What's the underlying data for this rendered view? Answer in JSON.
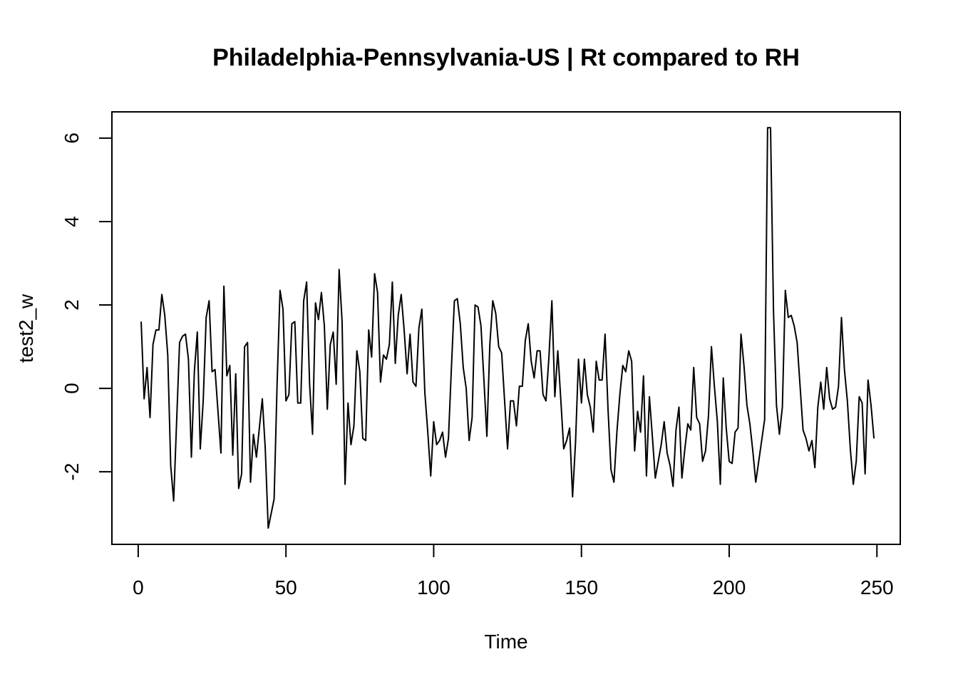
{
  "chart_data": {
    "type": "line",
    "title": "Philadelphia-Pennsylvania-US | Rt compared to RH",
    "xlabel": "Time",
    "ylabel": "test2_w",
    "xlim": [
      -8.9,
      257.9
    ],
    "ylim": [
      -3.74,
      6.63
    ],
    "x_ticks": [
      0,
      50,
      100,
      150,
      200,
      250
    ],
    "y_ticks": [
      -2,
      0,
      2,
      4,
      6
    ],
    "x_tick_labels": [
      "0",
      "50",
      "100",
      "150",
      "200",
      "250"
    ],
    "y_tick_labels": [
      "-2",
      "0",
      "2",
      "4",
      "6"
    ],
    "grid": false,
    "line_color": "#000000",
    "x_start": 1,
    "series": [
      {
        "values": [
          1.6,
          -0.25,
          0.5,
          -0.7,
          1.05,
          1.4,
          1.4,
          2.25,
          1.75,
          0.8,
          -1.85,
          -2.7,
          -0.8,
          1.1,
          1.25,
          1.3,
          0.7,
          -1.65,
          0.4,
          1.35,
          -1.45,
          -0.3,
          1.7,
          2.1,
          0.4,
          0.45,
          -0.55,
          -1.55,
          2.45,
          0.3,
          0.55,
          -1.6,
          0.35,
          -2.4,
          -2.05,
          1.0,
          1.1,
          -2.25,
          -1.1,
          -1.65,
          -0.95,
          -0.25,
          -1.45,
          -3.35,
          -3.0,
          -2.65,
          0.1,
          2.35,
          1.9,
          -0.3,
          -0.15,
          1.55,
          1.6,
          -0.35,
          -0.35,
          2.1,
          2.55,
          0.1,
          -1.1,
          2.05,
          1.65,
          2.3,
          1.5,
          -0.5,
          1.05,
          1.35,
          0.1,
          2.85,
          1.6,
          -2.3,
          -0.35,
          -1.35,
          -0.9,
          0.9,
          0.4,
          -1.2,
          -1.25,
          1.4,
          0.75,
          2.75,
          2.3,
          0.15,
          0.8,
          0.7,
          1.05,
          2.55,
          0.6,
          1.75,
          2.25,
          1.4,
          0.35,
          1.3,
          0.15,
          0.05,
          1.45,
          1.9,
          -0.1,
          -1.05,
          -2.1,
          -0.8,
          -1.35,
          -1.25,
          -1.05,
          -1.65,
          -1.2,
          0.5,
          2.1,
          2.15,
          1.55,
          0.5,
          0.0,
          -1.25,
          -0.7,
          2.0,
          1.95,
          1.5,
          0.2,
          -1.15,
          1.05,
          2.1,
          1.8,
          1.0,
          0.85,
          -0.3,
          -1.45,
          -0.3,
          -0.3,
          -0.9,
          0.05,
          0.05,
          1.15,
          1.55,
          0.65,
          0.25,
          0.9,
          0.9,
          -0.15,
          -0.3,
          0.75,
          2.1,
          -0.2,
          0.9,
          -0.25,
          -1.45,
          -1.25,
          -0.95,
          -2.6,
          -1.3,
          0.7,
          -0.35,
          0.7,
          -0.15,
          -0.45,
          -1.05,
          0.65,
          0.2,
          0.2,
          1.3,
          -0.5,
          -1.95,
          -2.25,
          -1.05,
          -0.15,
          0.55,
          0.4,
          0.9,
          0.65,
          -1.5,
          -0.55,
          -1.05,
          0.3,
          -2.1,
          -0.2,
          -1.15,
          -2.15,
          -1.75,
          -1.35,
          -0.8,
          -1.55,
          -1.85,
          -2.35,
          -1.0,
          -0.45,
          -2.15,
          -1.45,
          -0.85,
          -1.0,
          0.5,
          -0.7,
          -0.85,
          -1.75,
          -1.5,
          -0.65,
          1.0,
          0.05,
          -0.8,
          -2.3,
          0.25,
          -0.95,
          -1.75,
          -1.8,
          -1.05,
          -0.95,
          1.3,
          0.55,
          -0.4,
          -0.85,
          -1.5,
          -2.25,
          -1.75,
          -1.25,
          -0.75,
          6.25,
          6.25,
          1.85,
          -0.4,
          -1.1,
          -0.45,
          2.35,
          1.7,
          1.75,
          1.5,
          1.1,
          0.05,
          -1.0,
          -1.2,
          -1.5,
          -1.25,
          -1.9,
          -0.45,
          0.15,
          -0.5,
          0.5,
          -0.25,
          -0.5,
          -0.45,
          0.05,
          1.7,
          0.45,
          -0.3,
          -1.45,
          -2.3,
          -1.75,
          -0.2,
          -0.35,
          -2.05,
          0.2,
          -0.4,
          -1.2
        ]
      }
    ]
  }
}
